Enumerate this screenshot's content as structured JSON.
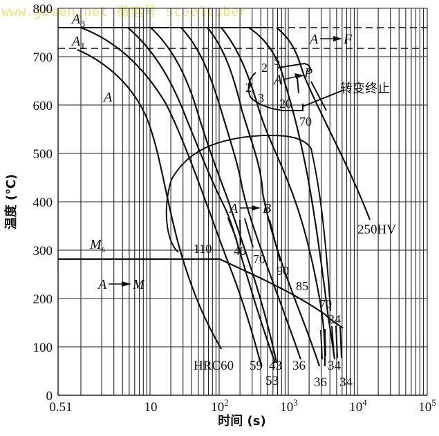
{
  "watermark": "www.josen.net  微信号  steeltuber",
  "chart_data": {
    "type": "line",
    "title": "",
    "xlabel": "时间 (s)",
    "ylabel": "温度 (℃)",
    "x_scale": "log",
    "xlim": [
      0.51,
      100000
    ],
    "ylim": [
      0,
      800
    ],
    "grid": true,
    "x_tick_labels": [
      "0.51",
      "10",
      "10²",
      "10³",
      "10⁴",
      "10⁵"
    ],
    "y_tick_labels": [
      "0",
      "100",
      "200",
      "300",
      "400",
      "500",
      "600",
      "700",
      "800"
    ],
    "reference_lines": [
      {
        "name": "A3",
        "temperature": 760,
        "style": "solid"
      },
      {
        "name": "A1",
        "temperature": 720,
        "style": "dashed"
      },
      {
        "name": "Ms",
        "temperature": 280,
        "style": "solid",
        "until_time_s": 100
      }
    ],
    "regions": [
      {
        "label": "A",
        "meaning": "austenite"
      },
      {
        "label": "A→F",
        "meaning": "ferrite transformation"
      },
      {
        "label": "A→P",
        "meaning": "pearlite transformation"
      },
      {
        "label": "A→B",
        "meaning": "bainite transformation"
      },
      {
        "label": "A→M",
        "meaning": "martensite transformation"
      }
    ],
    "annotations": [
      "转变终止",
      "250HV",
      "HRC60",
      "Ms",
      "A3",
      "A1"
    ],
    "transformation_percent_labels": [
      "2",
      "5",
      "2",
      "2",
      "3",
      "20",
      "70",
      "110",
      "40",
      "70",
      "90",
      "85",
      "70",
      "24"
    ],
    "end_hardness_labels": [
      "HRC60",
      "59",
      "43",
      "53",
      "36",
      "36",
      "34",
      "34",
      "250HV"
    ],
    "cooling_curves": [
      {
        "end_label": "HRC60",
        "points": [
          [
            1.0,
            760
          ],
          [
            5,
            640
          ],
          [
            20,
            450
          ],
          [
            40,
            280
          ],
          [
            100,
            100
          ]
        ]
      },
      {
        "end_label": "59",
        "points": [
          [
            6,
            760
          ],
          [
            20,
            640
          ],
          [
            60,
            480
          ],
          [
            150,
            300
          ],
          [
            400,
            110
          ]
        ]
      },
      {
        "end_label": "53",
        "points": [
          [
            10,
            760
          ],
          [
            35,
            640
          ],
          [
            100,
            480
          ],
          [
            200,
            400
          ],
          [
            500,
            100
          ]
        ]
      },
      {
        "end_label": "43",
        "points": [
          [
            30,
            760
          ],
          [
            80,
            640
          ],
          [
            200,
            450
          ],
          [
            600,
            130
          ]
        ]
      },
      {
        "end_label": "36",
        "points": [
          [
            80,
            760
          ],
          [
            200,
            640
          ],
          [
            500,
            460
          ],
          [
            1500,
            100
          ]
        ]
      },
      {
        "end_label": "36",
        "points": [
          [
            200,
            760
          ],
          [
            500,
            640
          ],
          [
            900,
            520
          ],
          [
            2500,
            60
          ]
        ]
      },
      {
        "end_label": "34",
        "points": [
          [
            350,
            760
          ],
          [
            1000,
            640
          ],
          [
            2000,
            540
          ],
          [
            3500,
            130
          ]
        ]
      },
      {
        "end_label": "34",
        "points": [
          [
            500,
            760
          ],
          [
            1500,
            660
          ],
          [
            2500,
            560
          ],
          [
            5000,
            100
          ]
        ]
      },
      {
        "end_label": "250HV",
        "points": [
          [
            1200,
            760
          ],
          [
            2500,
            700
          ],
          [
            4000,
            560
          ],
          [
            7000,
            340
          ]
        ]
      }
    ],
    "transformation_end_curve": [
      [
        20,
        290
      ],
      [
        20,
        380
      ],
      [
        40,
        460
      ],
      [
        120,
        510
      ],
      [
        400,
        530
      ],
      [
        1500,
        525
      ],
      [
        3000,
        500
      ]
    ],
    "ms_curve": [
      [
        0.51,
        280
      ],
      [
        100,
        280
      ],
      [
        400,
        220
      ],
      [
        1500,
        170
      ],
      [
        5000,
        130
      ]
    ]
  },
  "axes": {
    "y_ticks": [
      {
        "label": "800",
        "value": 800
      },
      {
        "label": "700",
        "value": 700
      },
      {
        "label": "600",
        "value": 600
      },
      {
        "label": "500",
        "value": 500
      },
      {
        "label": "400",
        "value": 400
      },
      {
        "label": "300",
        "value": 300
      },
      {
        "label": "200",
        "value": 200
      },
      {
        "label": "100",
        "value": 100
      },
      {
        "label": "0",
        "value": 0
      }
    ],
    "x_ticks": [
      {
        "label": "0.51",
        "sup": ""
      },
      {
        "label": "10",
        "sup": ""
      },
      {
        "label": "10",
        "sup": "2"
      },
      {
        "label": "10",
        "sup": "3"
      },
      {
        "label": "10",
        "sup": "4"
      },
      {
        "label": "10",
        "sup": "5"
      }
    ],
    "xlabel": "时间 (s)",
    "ylabel": "温度 (℃)"
  },
  "labels": {
    "a3": "A",
    "a3_sub": "3",
    "a1": "A",
    "a1_sub": "1",
    "austenite": "A",
    "a_to_f_a": "A",
    "a_to_f_f": "F",
    "a_to_p_a": "A",
    "a_to_p_p": "P",
    "a_to_b_a": "A",
    "a_to_b_b": "B",
    "a_to_m_a": "A",
    "a_to_m_m": "M",
    "ms": "M",
    "ms_sub": "s",
    "end_transform": "转变终止",
    "hv250": "250HV",
    "p2a": "2",
    "p5": "5",
    "p2b": "2",
    "p3": "3",
    "p20": "20",
    "p70a": "70",
    "p110": "110",
    "p40": "40",
    "p70b": "70",
    "p90": "90",
    "p85": "85",
    "p70c": "70",
    "p24": "24",
    "h60": "HRC60",
    "h59": "59",
    "h43": "43",
    "h53": "53",
    "h36a": "36",
    "h36b": "36",
    "h34a": "34",
    "h34b": "34"
  }
}
